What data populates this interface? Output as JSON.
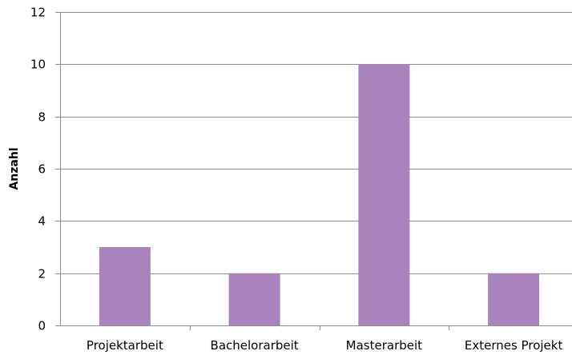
{
  "chart_data": {
    "type": "bar",
    "categories": [
      "Projektarbeit",
      "Bachelorarbeit",
      "Masterarbeit",
      "Externes Projekt"
    ],
    "values": [
      3,
      2,
      10,
      2
    ],
    "title": "",
    "xlabel": "",
    "ylabel": "Anzahl",
    "ylim": [
      0,
      12
    ],
    "yticks": [
      0,
      2,
      4,
      6,
      8,
      10,
      12
    ],
    "grid": true,
    "legend": "none",
    "bar_color": "#a983bc"
  }
}
